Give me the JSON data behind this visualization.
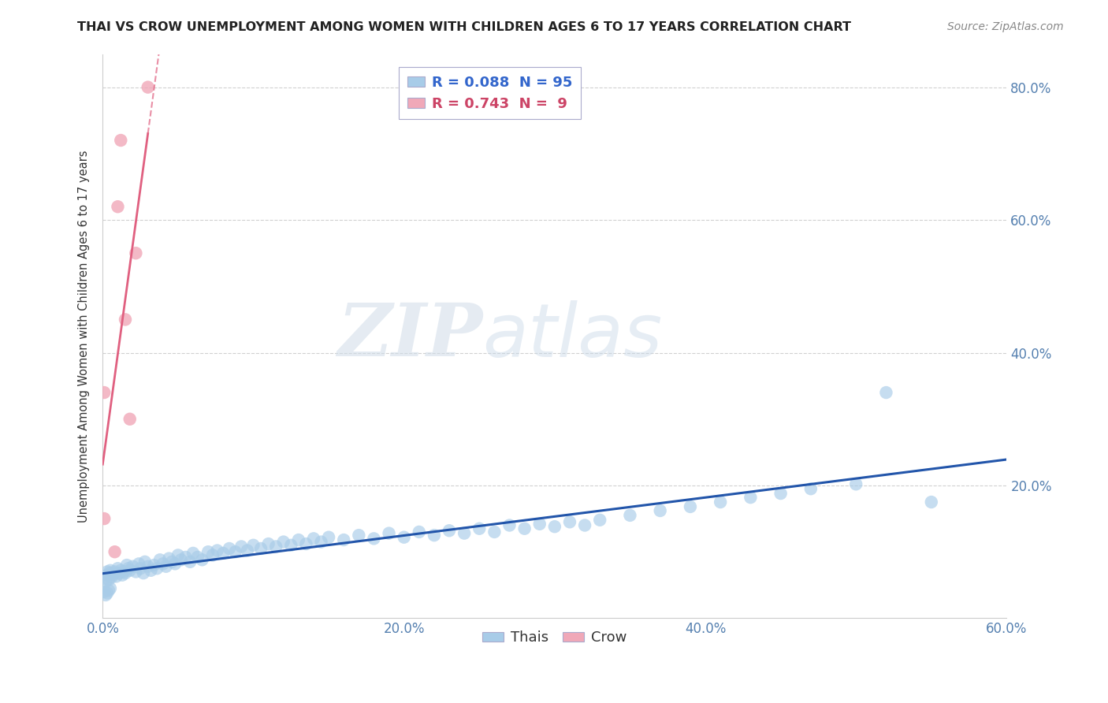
{
  "title": "THAI VS CROW UNEMPLOYMENT AMONG WOMEN WITH CHILDREN AGES 6 TO 17 YEARS CORRELATION CHART",
  "source": "Source: ZipAtlas.com",
  "xlim": [
    0.0,
    0.6
  ],
  "ylim": [
    0.0,
    0.85
  ],
  "color_thai": "#a8cce8",
  "color_crow": "#f0a8b8",
  "color_thai_line": "#2255aa",
  "color_crow_line": "#e06080",
  "watermark_zip": "ZIP",
  "watermark_atlas": "atlas",
  "ylabel": "Unemployment Among Women with Children Ages 6 to 17 years",
  "thai_x": [
    0.001,
    0.002,
    0.003,
    0.003,
    0.004,
    0.005,
    0.005,
    0.006,
    0.007,
    0.008,
    0.009,
    0.01,
    0.011,
    0.012,
    0.013,
    0.014,
    0.015,
    0.016,
    0.017,
    0.018,
    0.02,
    0.022,
    0.024,
    0.025,
    0.027,
    0.028,
    0.03,
    0.032,
    0.034,
    0.036,
    0.038,
    0.04,
    0.042,
    0.044,
    0.046,
    0.048,
    0.05,
    0.052,
    0.055,
    0.058,
    0.06,
    0.063,
    0.066,
    0.07,
    0.073,
    0.076,
    0.08,
    0.084,
    0.088,
    0.092,
    0.096,
    0.1,
    0.105,
    0.11,
    0.115,
    0.12,
    0.125,
    0.13,
    0.135,
    0.14,
    0.145,
    0.15,
    0.16,
    0.17,
    0.18,
    0.19,
    0.2,
    0.21,
    0.22,
    0.23,
    0.24,
    0.25,
    0.26,
    0.27,
    0.28,
    0.29,
    0.3,
    0.31,
    0.32,
    0.33,
    0.35,
    0.37,
    0.39,
    0.41,
    0.43,
    0.45,
    0.47,
    0.5,
    0.52,
    0.55,
    0.001,
    0.002,
    0.003,
    0.004,
    0.005
  ],
  "thai_y": [
    0.06,
    0.055,
    0.07,
    0.065,
    0.058,
    0.072,
    0.068,
    0.062,
    0.066,
    0.07,
    0.063,
    0.075,
    0.068,
    0.072,
    0.065,
    0.07,
    0.068,
    0.08,
    0.075,
    0.072,
    0.078,
    0.07,
    0.082,
    0.075,
    0.068,
    0.085,
    0.078,
    0.072,
    0.08,
    0.075,
    0.088,
    0.082,
    0.078,
    0.09,
    0.085,
    0.082,
    0.095,
    0.088,
    0.092,
    0.085,
    0.098,
    0.092,
    0.088,
    0.1,
    0.095,
    0.102,
    0.098,
    0.105,
    0.1,
    0.108,
    0.102,
    0.11,
    0.105,
    0.112,
    0.108,
    0.115,
    0.11,
    0.118,
    0.112,
    0.12,
    0.115,
    0.122,
    0.118,
    0.125,
    0.12,
    0.128,
    0.122,
    0.13,
    0.125,
    0.132,
    0.128,
    0.135,
    0.13,
    0.14,
    0.135,
    0.142,
    0.138,
    0.145,
    0.14,
    0.148,
    0.155,
    0.162,
    0.168,
    0.175,
    0.182,
    0.188,
    0.195,
    0.202,
    0.34,
    0.175,
    0.04,
    0.035,
    0.038,
    0.042,
    0.045
  ],
  "crow_x": [
    0.001,
    0.001,
    0.01,
    0.012,
    0.018,
    0.022,
    0.03,
    0.015,
    0.008
  ],
  "crow_y": [
    0.15,
    0.34,
    0.62,
    0.72,
    0.3,
    0.55,
    0.8,
    0.45,
    0.1
  ]
}
